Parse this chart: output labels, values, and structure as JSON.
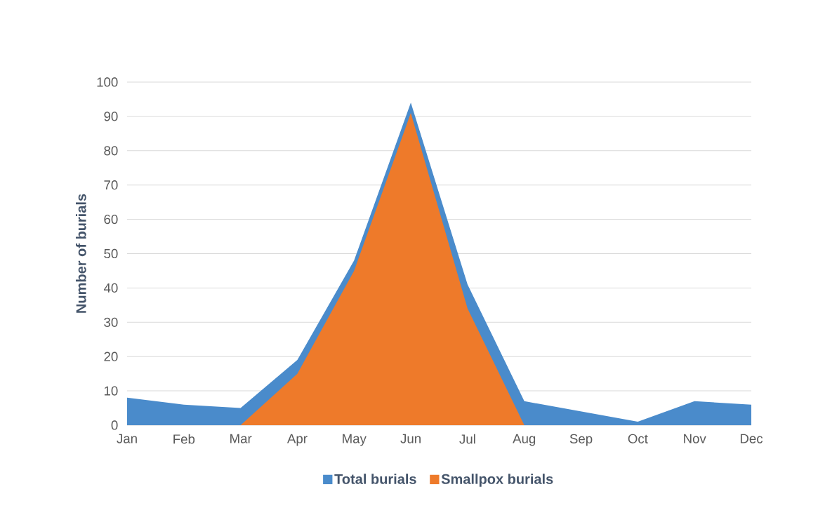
{
  "chart_data": {
    "type": "area",
    "ylabel": "Number of burials",
    "categories": [
      "Jan",
      "Feb",
      "Mar",
      "Apr",
      "May",
      "Jun",
      "Jul",
      "Aug",
      "Sep",
      "Oct",
      "Nov",
      "Dec"
    ],
    "series": [
      {
        "name": "Total burials",
        "color": "#4a8bcb",
        "values": [
          8,
          6,
          5,
          19,
          48,
          94,
          41,
          7,
          4,
          1,
          7,
          6
        ]
      },
      {
        "name": "Smallpox burials",
        "color": "#ee7a2a",
        "values": [
          null,
          null,
          0,
          15,
          45,
          91,
          34,
          0,
          null,
          null,
          null,
          null
        ]
      }
    ],
    "ylim": [
      0,
      100
    ],
    "yticks": [
      0,
      10,
      20,
      30,
      40,
      50,
      60,
      70,
      80,
      90,
      100
    ],
    "grid": "y",
    "legend": "bottom"
  }
}
